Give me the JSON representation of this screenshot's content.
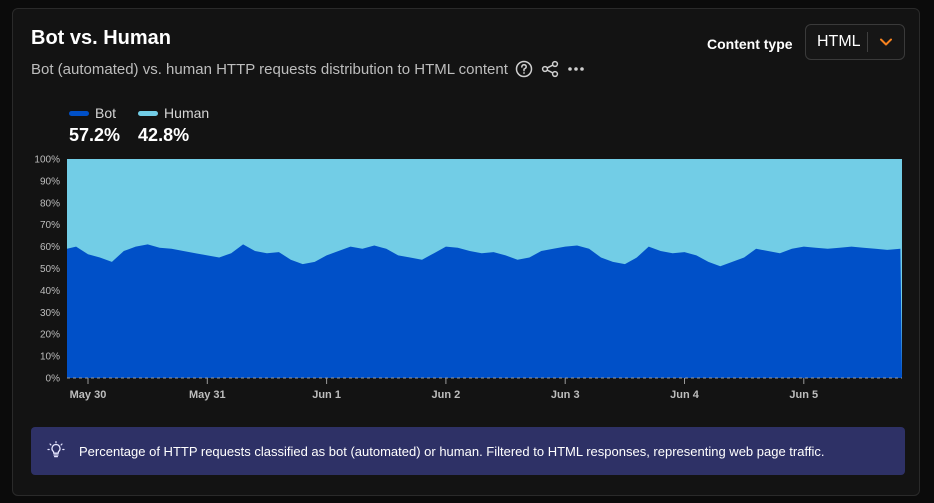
{
  "header": {
    "title": "Bot vs. Human",
    "subtitle": "Bot (automated) vs. human HTTP requests distribution to HTML content"
  },
  "filter": {
    "label": "Content type",
    "value": "HTML"
  },
  "legend": [
    {
      "name": "Bot",
      "value": "57.2%",
      "color": "#0050c8"
    },
    {
      "name": "Human",
      "value": "42.8%",
      "color": "#72cde6"
    }
  ],
  "icons": {
    "help": "question-circle-icon",
    "share": "share-icon",
    "more": "more-dots-icon",
    "chevron": "chevron-down-icon",
    "info": "lightbulb-icon"
  },
  "colors": {
    "bot": "#0050c8",
    "human": "#72cde6",
    "accent": "#f6821f",
    "info_bg": "#2e3166"
  },
  "chart_data": {
    "type": "area",
    "stacked": true,
    "ylim": [
      0,
      100
    ],
    "y_ticks": [
      "0%",
      "10%",
      "20%",
      "30%",
      "40%",
      "50%",
      "60%",
      "70%",
      "80%",
      "90%",
      "100%"
    ],
    "x_ticks": [
      "May 30",
      "May 31",
      "Jun 1",
      "Jun 2",
      "Jun 3",
      "Jun 4",
      "Jun 5"
    ],
    "x_range_days": [
      -0.18,
      6.81
    ],
    "grid": false,
    "series": [
      {
        "name": "Bot",
        "x": [
          -0.18,
          -0.1,
          0.0,
          0.1,
          0.2,
          0.3,
          0.4,
          0.5,
          0.6,
          0.7,
          0.8,
          0.9,
          1.0,
          1.1,
          1.2,
          1.3,
          1.4,
          1.5,
          1.6,
          1.7,
          1.8,
          1.9,
          2.0,
          2.1,
          2.2,
          2.3,
          2.4,
          2.5,
          2.6,
          2.7,
          2.8,
          2.9,
          3.0,
          3.1,
          3.2,
          3.3,
          3.4,
          3.5,
          3.6,
          3.7,
          3.8,
          3.9,
          4.0,
          4.1,
          4.2,
          4.3,
          4.4,
          4.5,
          4.6,
          4.7,
          4.8,
          4.9,
          5.0,
          5.1,
          5.2,
          5.3,
          5.4,
          5.5,
          5.6,
          5.7,
          5.8,
          5.9,
          6.0,
          6.1,
          6.2,
          6.3,
          6.4,
          6.5,
          6.6,
          6.7,
          6.81
        ],
        "values": [
          59,
          60,
          56.5,
          55,
          53,
          58,
          60,
          61,
          59.5,
          59,
          58,
          57,
          56,
          55,
          57,
          61,
          58,
          57,
          57.5,
          54,
          52,
          53,
          56,
          58,
          60,
          59,
          60.5,
          59,
          56,
          55,
          54,
          57,
          60,
          59.5,
          58,
          57,
          57.5,
          56,
          54,
          55,
          58,
          59,
          60,
          60.5,
          59,
          55,
          53,
          52,
          55,
          60,
          58,
          57,
          57.5,
          56,
          53,
          51,
          53,
          55,
          59,
          58,
          57,
          59,
          60,
          59.5,
          59,
          59.5,
          60,
          59.5,
          59,
          58.5,
          59
        ]
      },
      {
        "name": "Human",
        "note": "remainder to 100%"
      }
    ]
  },
  "info": {
    "text": "Percentage of HTTP requests classified as bot (automated) or human. Filtered to HTML responses, representing web page traffic."
  }
}
